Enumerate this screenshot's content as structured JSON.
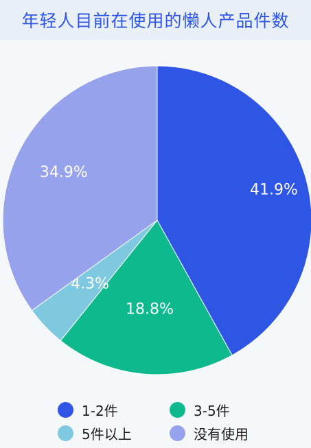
{
  "chart_data": {
    "type": "pie",
    "title": "年轻人目前在使用的懒人产品件数",
    "slices": [
      {
        "name": "1-2件",
        "value": 41.9,
        "label": "41.9%",
        "color": "#2f55e4"
      },
      {
        "name": "3-5件",
        "value": 18.8,
        "label": "18.8%",
        "color": "#0db98d"
      },
      {
        "name": "5件以上",
        "value": 4.3,
        "label": "4.3%",
        "color": "#7fc9e0"
      },
      {
        "name": "没有使用",
        "value": 34.9,
        "label": "34.9%",
        "color": "#97a2ec"
      }
    ],
    "legend_position": "bottom"
  },
  "legend": {
    "items": [
      {
        "label": "1-2件",
        "color": "#2f55e4"
      },
      {
        "label": "3-5件",
        "color": "#0db98d"
      },
      {
        "label": "5件以上",
        "color": "#7fc9e0"
      },
      {
        "label": "没有使用",
        "color": "#97a2ec"
      }
    ]
  }
}
